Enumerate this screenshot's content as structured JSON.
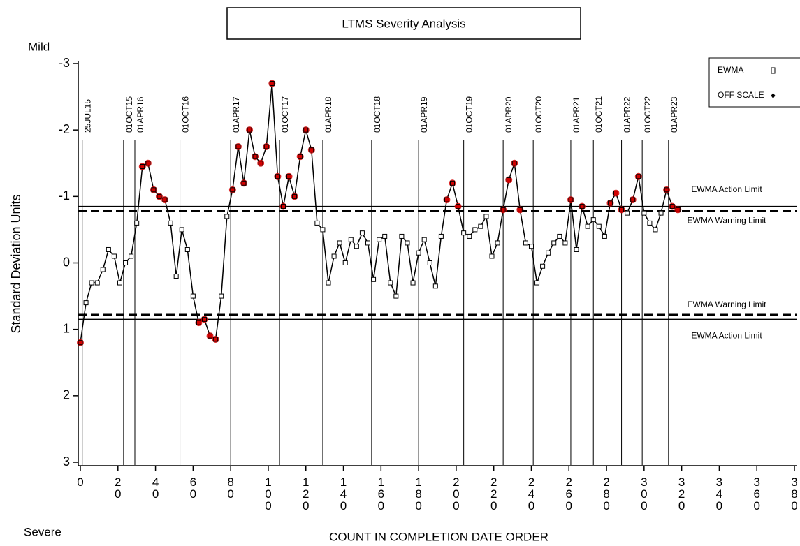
{
  "chart_data": {
    "type": "line",
    "title": "LTMS Severity Analysis",
    "top_label": "Mild",
    "bottom_label": "Severe",
    "y_label": "Standard Deviation Units",
    "x_label": "COUNT IN COMPLETION DATE ORDER",
    "ylim": [
      -3,
      3
    ],
    "y_inverted": true,
    "yticks": [
      -3,
      -2,
      -1,
      0,
      1,
      2,
      3
    ],
    "xlim": [
      0,
      380
    ],
    "xticks": [
      0,
      20,
      40,
      60,
      80,
      100,
      120,
      140,
      160,
      180,
      200,
      220,
      240,
      260,
      280,
      300,
      320,
      340,
      360,
      380
    ],
    "marker_color": "#000000",
    "alarm_color": "#d40000",
    "warning_limit": 0.78,
    "legend": {
      "entries": [
        "EWMA",
        "OFF SCALE"
      ],
      "position": "upper right"
    },
    "limits": [
      {
        "label": "EWMA Action Limit",
        "value": -0.85,
        "style": "solid"
      },
      {
        "label": "EWMA Warning Limit",
        "value": -0.78,
        "style": "dashed"
      },
      {
        "label": "EWMA Warning Limit",
        "value": 0.78,
        "style": "dashed"
      },
      {
        "label": "EWMA Action Limit",
        "value": 0.85,
        "style": "solid"
      }
    ],
    "date_lines": [
      {
        "x": 1,
        "label": "25JUL15"
      },
      {
        "x": 23,
        "label": "01OCT15"
      },
      {
        "x": 29,
        "label": "01APR16"
      },
      {
        "x": 53,
        "label": "01OCT16"
      },
      {
        "x": 80,
        "label": "01APR17"
      },
      {
        "x": 106,
        "label": "01OCT17"
      },
      {
        "x": 129,
        "label": "01APR18"
      },
      {
        "x": 155,
        "label": "01OCT18"
      },
      {
        "x": 180,
        "label": "01APR19"
      },
      {
        "x": 204,
        "label": "01OCT19"
      },
      {
        "x": 225,
        "label": "01APR20"
      },
      {
        "x": 241,
        "label": "01OCT20"
      },
      {
        "x": 261,
        "label": "01APR21"
      },
      {
        "x": 273,
        "label": "01OCT21"
      },
      {
        "x": 288,
        "label": "01APR22"
      },
      {
        "x": 299,
        "label": "01OCT22"
      },
      {
        "x": 313,
        "label": "01APR23"
      }
    ],
    "x": [
      0,
      3,
      6,
      9,
      12,
      15,
      18,
      21,
      24,
      27,
      30,
      33,
      36,
      39,
      42,
      45,
      48,
      51,
      54,
      57,
      60,
      63,
      66,
      69,
      72,
      75,
      78,
      81,
      84,
      87,
      90,
      93,
      96,
      99,
      102,
      105,
      108,
      111,
      114,
      117,
      120,
      123,
      126,
      129,
      132,
      135,
      138,
      141,
      144,
      147,
      150,
      153,
      156,
      159,
      162,
      165,
      168,
      171,
      174,
      177,
      180,
      183,
      186,
      189,
      192,
      195,
      198,
      201,
      204,
      207,
      210,
      213,
      216,
      219,
      222,
      225,
      228,
      231,
      234,
      237,
      240,
      243,
      246,
      249,
      252,
      255,
      258,
      261,
      264,
      267,
      270,
      273,
      276,
      279,
      282,
      285,
      288,
      291,
      294,
      297,
      300,
      303,
      306,
      309,
      312,
      315,
      318
    ],
    "values": [
      1.2,
      0.6,
      0.3,
      0.3,
      0.1,
      -0.2,
      -0.1,
      0.3,
      0.0,
      -0.1,
      -0.6,
      -1.45,
      -1.5,
      -1.1,
      -1.0,
      -0.95,
      -0.6,
      0.2,
      -0.5,
      -0.2,
      0.5,
      0.9,
      0.85,
      1.1,
      1.15,
      0.5,
      -0.7,
      -1.1,
      -1.75,
      -1.2,
      -2.0,
      -1.6,
      -1.5,
      -1.75,
      -2.7,
      -1.3,
      -0.85,
      -1.3,
      -1.0,
      -1.6,
      -2.0,
      -1.7,
      -0.6,
      -0.5,
      0.3,
      -0.1,
      -0.3,
      0.0,
      -0.35,
      -0.25,
      -0.45,
      -0.3,
      0.25,
      -0.35,
      -0.4,
      0.3,
      0.5,
      -0.4,
      -0.3,
      0.3,
      -0.15,
      -0.35,
      0.0,
      0.35,
      -0.4,
      -0.95,
      -1.2,
      -0.85,
      -0.45,
      -0.4,
      -0.5,
      -0.55,
      -0.7,
      -0.1,
      -0.3,
      -0.8,
      -1.25,
      -1.5,
      -0.8,
      -0.3,
      -0.25,
      0.3,
      0.05,
      -0.15,
      -0.3,
      -0.4,
      -0.3,
      -0.95,
      -0.2,
      -0.85,
      -0.55,
      -0.65,
      -0.55,
      -0.4,
      -0.9,
      -1.05,
      -0.8,
      -0.75,
      -0.95,
      -1.3,
      -0.75,
      -0.6,
      -0.5,
      -0.75,
      -1.1,
      -0.85,
      -0.8
    ]
  }
}
